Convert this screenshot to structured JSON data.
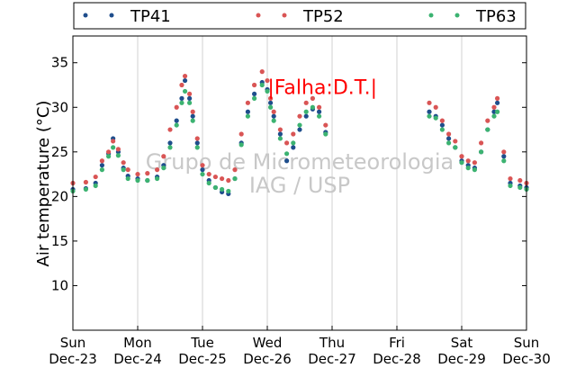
{
  "chart_data": {
    "type": "scatter",
    "title": "",
    "ylabel": "Air temperature (°C)",
    "xlabel": "",
    "ylim": [
      5,
      38
    ],
    "yticks": [
      10,
      15,
      20,
      25,
      30,
      35
    ],
    "xlim": [
      0,
      7
    ],
    "xticks": [
      {
        "day": "Sun",
        "date": "Dec-23"
      },
      {
        "day": "Mon",
        "date": "Dec-24"
      },
      {
        "day": "Tue",
        "date": "Dec-25"
      },
      {
        "day": "Wed",
        "date": "Dec-26"
      },
      {
        "day": "Thu",
        "date": "Dec-27"
      },
      {
        "day": "Fri",
        "date": "Dec-28"
      },
      {
        "day": "Sat",
        "date": "Dec-29"
      },
      {
        "day": "Sun",
        "date": "Dec-30"
      }
    ],
    "grid": "vertical",
    "legend_position": "top",
    "series": [
      {
        "name": "TP41",
        "color": "#1f4e8c",
        "points": [
          [
            0,
            20.8
          ],
          [
            0.2,
            20.9
          ],
          [
            0.35,
            21.5
          ],
          [
            0.45,
            23.5
          ],
          [
            0.55,
            24.8
          ],
          [
            0.62,
            26.5
          ],
          [
            0.7,
            25.0
          ],
          [
            0.78,
            23.2
          ],
          [
            0.85,
            22.3
          ],
          [
            1.0,
            22.0
          ],
          [
            1.15,
            21.8
          ],
          [
            1.3,
            22.2
          ],
          [
            1.4,
            23.5
          ],
          [
            1.5,
            26.0
          ],
          [
            1.6,
            28.5
          ],
          [
            1.68,
            31.0
          ],
          [
            1.73,
            33.0
          ],
          [
            1.8,
            31.0
          ],
          [
            1.85,
            29.0
          ],
          [
            1.92,
            26.0
          ],
          [
            2.0,
            23.0
          ],
          [
            2.1,
            21.8
          ],
          [
            2.2,
            21.0
          ],
          [
            2.3,
            20.5
          ],
          [
            2.4,
            20.3
          ],
          [
            2.5,
            22.0
          ],
          [
            2.6,
            26.0
          ],
          [
            2.7,
            29.5
          ],
          [
            2.8,
            31.5
          ],
          [
            2.92,
            32.8
          ],
          [
            3.0,
            32.0
          ],
          [
            3.05,
            30.5
          ],
          [
            3.1,
            29.0
          ],
          [
            3.2,
            27.0
          ],
          [
            3.3,
            24.0
          ],
          [
            3.4,
            25.5
          ],
          [
            3.5,
            27.5
          ],
          [
            3.6,
            29.0
          ],
          [
            3.7,
            29.8
          ],
          [
            3.8,
            29.5
          ],
          [
            3.9,
            27.2
          ],
          [
            5.5,
            29.5
          ],
          [
            5.6,
            29.0
          ],
          [
            5.7,
            28.0
          ],
          [
            5.8,
            26.5
          ],
          [
            5.9,
            25.5
          ],
          [
            6.0,
            24.0
          ],
          [
            6.1,
            23.5
          ],
          [
            6.2,
            23.2
          ],
          [
            6.3,
            25.0
          ],
          [
            6.4,
            27.5
          ],
          [
            6.5,
            29.5
          ],
          [
            6.55,
            30.5
          ],
          [
            6.65,
            24.5
          ],
          [
            6.75,
            21.5
          ],
          [
            6.9,
            21.2
          ],
          [
            7.0,
            21.0
          ]
        ]
      },
      {
        "name": "TP52",
        "color": "#d95555",
        "points": [
          [
            0,
            21.5
          ],
          [
            0.2,
            21.6
          ],
          [
            0.35,
            22.2
          ],
          [
            0.45,
            24.0
          ],
          [
            0.55,
            25.0
          ],
          [
            0.62,
            26.2
          ],
          [
            0.7,
            25.3
          ],
          [
            0.78,
            23.8
          ],
          [
            0.85,
            23.0
          ],
          [
            1.0,
            22.5
          ],
          [
            1.15,
            22.6
          ],
          [
            1.3,
            23.0
          ],
          [
            1.4,
            24.5
          ],
          [
            1.5,
            27.5
          ],
          [
            1.6,
            30.0
          ],
          [
            1.68,
            32.5
          ],
          [
            1.73,
            33.5
          ],
          [
            1.8,
            31.5
          ],
          [
            1.85,
            29.5
          ],
          [
            1.92,
            26.5
          ],
          [
            2.0,
            23.5
          ],
          [
            2.1,
            22.5
          ],
          [
            2.2,
            22.2
          ],
          [
            2.3,
            22.0
          ],
          [
            2.4,
            21.8
          ],
          [
            2.5,
            23.0
          ],
          [
            2.6,
            27.0
          ],
          [
            2.7,
            30.5
          ],
          [
            2.8,
            32.5
          ],
          [
            2.92,
            34.0
          ],
          [
            3.0,
            33.0
          ],
          [
            3.05,
            31.0
          ],
          [
            3.1,
            29.5
          ],
          [
            3.2,
            27.5
          ],
          [
            3.3,
            26.0
          ],
          [
            3.4,
            27.0
          ],
          [
            3.5,
            29.0
          ],
          [
            3.6,
            30.5
          ],
          [
            3.7,
            31.0
          ],
          [
            3.8,
            30.0
          ],
          [
            3.9,
            28.0
          ],
          [
            5.5,
            30.5
          ],
          [
            5.6,
            30.0
          ],
          [
            5.7,
            28.5
          ],
          [
            5.8,
            27.0
          ],
          [
            5.9,
            26.2
          ],
          [
            6.0,
            24.5
          ],
          [
            6.1,
            24.0
          ],
          [
            6.2,
            23.8
          ],
          [
            6.3,
            26.0
          ],
          [
            6.4,
            28.5
          ],
          [
            6.5,
            30.0
          ],
          [
            6.55,
            31.0
          ],
          [
            6.65,
            25.0
          ],
          [
            6.75,
            22.0
          ],
          [
            6.9,
            21.8
          ],
          [
            7.0,
            21.5
          ]
        ]
      },
      {
        "name": "TP63",
        "color": "#3cb371",
        "points": [
          [
            0,
            20.6
          ],
          [
            0.2,
            20.8
          ],
          [
            0.35,
            21.2
          ],
          [
            0.45,
            23.0
          ],
          [
            0.55,
            24.5
          ],
          [
            0.62,
            25.5
          ],
          [
            0.7,
            24.6
          ],
          [
            0.78,
            23.0
          ],
          [
            0.85,
            22.0
          ],
          [
            1.0,
            21.8
          ],
          [
            1.15,
            21.8
          ],
          [
            1.3,
            22.0
          ],
          [
            1.4,
            23.2
          ],
          [
            1.5,
            25.5
          ],
          [
            1.6,
            28.0
          ],
          [
            1.68,
            30.5
          ],
          [
            1.73,
            31.8
          ],
          [
            1.8,
            30.5
          ],
          [
            1.85,
            28.5
          ],
          [
            1.92,
            25.5
          ],
          [
            2.0,
            22.5
          ],
          [
            2.1,
            21.5
          ],
          [
            2.2,
            21.0
          ],
          [
            2.3,
            20.8
          ],
          [
            2.4,
            20.6
          ],
          [
            2.5,
            22.0
          ],
          [
            2.6,
            25.8
          ],
          [
            2.7,
            29.0
          ],
          [
            2.8,
            31.0
          ],
          [
            2.92,
            32.5
          ],
          [
            3.0,
            31.8
          ],
          [
            3.05,
            30.0
          ],
          [
            3.1,
            28.5
          ],
          [
            3.2,
            26.5
          ],
          [
            3.3,
            24.8
          ],
          [
            3.4,
            26.0
          ],
          [
            3.5,
            28.0
          ],
          [
            3.6,
            29.5
          ],
          [
            3.7,
            30.0
          ],
          [
            3.8,
            29.0
          ],
          [
            3.9,
            27.0
          ],
          [
            5.5,
            29.0
          ],
          [
            5.6,
            28.8
          ],
          [
            5.7,
            27.5
          ],
          [
            5.8,
            26.0
          ],
          [
            5.9,
            25.5
          ],
          [
            6.0,
            23.8
          ],
          [
            6.1,
            23.2
          ],
          [
            6.2,
            23.0
          ],
          [
            6.3,
            25.0
          ],
          [
            6.4,
            27.5
          ],
          [
            6.5,
            29.0
          ],
          [
            6.55,
            29.5
          ],
          [
            6.65,
            24.0
          ],
          [
            6.75,
            21.2
          ],
          [
            6.9,
            21.0
          ],
          [
            7.0,
            20.8
          ]
        ]
      }
    ],
    "annotations": [
      {
        "text": "|Falha:D.T.|",
        "x": 3.85,
        "y": 31.5,
        "color": "#ff0000"
      }
    ],
    "watermark": [
      "Grupo de Micrometeorologia",
      "IAG / USP"
    ]
  }
}
